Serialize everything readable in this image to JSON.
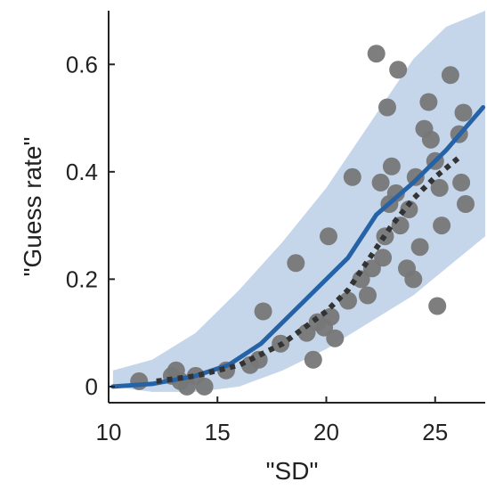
{
  "chart_data": {
    "type": "scatter",
    "xlabel": "\"SD\"",
    "ylabel": "\"Guess rate\"",
    "xlim": [
      10,
      27.3
    ],
    "ylim": [
      -0.03,
      0.7
    ],
    "xticks": [
      10,
      15,
      20,
      25
    ],
    "xtick_labels": [
      "10",
      "15",
      "20",
      "25"
    ],
    "yticks": [
      0,
      0.2,
      0.4,
      0.6
    ],
    "ytick_labels": [
      "0",
      "0.2",
      "0.4",
      "0.6"
    ],
    "grid": false,
    "band": {
      "x": [
        10.2,
        12,
        14,
        16,
        18,
        20,
        22,
        24,
        25.5,
        27.3
      ],
      "lower": [
        0.0,
        -0.01,
        -0.01,
        0.0,
        0.03,
        0.07,
        0.12,
        0.17,
        0.22,
        0.28
      ],
      "upper": [
        0.03,
        0.05,
        0.1,
        0.18,
        0.27,
        0.37,
        0.49,
        0.61,
        0.67,
        0.7
      ]
    },
    "points": [
      [
        11.4,
        0.01
      ],
      [
        12.9,
        0.02
      ],
      [
        13.1,
        0.03
      ],
      [
        13.3,
        0.01
      ],
      [
        13.6,
        0.0
      ],
      [
        14.0,
        0.02
      ],
      [
        14.4,
        0.0
      ],
      [
        15.4,
        0.03
      ],
      [
        16.5,
        0.04
      ],
      [
        16.9,
        0.05
      ],
      [
        17.1,
        0.14
      ],
      [
        17.9,
        0.08
      ],
      [
        18.6,
        0.23
      ],
      [
        19.1,
        0.1
      ],
      [
        19.4,
        0.05
      ],
      [
        19.6,
        0.12
      ],
      [
        19.9,
        0.11
      ],
      [
        20.1,
        0.28
      ],
      [
        20.2,
        0.13
      ],
      [
        20.4,
        0.09
      ],
      [
        21.0,
        0.16
      ],
      [
        21.2,
        0.39
      ],
      [
        21.6,
        0.2
      ],
      [
        21.9,
        0.17
      ],
      [
        22.1,
        0.22
      ],
      [
        22.3,
        0.62
      ],
      [
        22.5,
        0.38
      ],
      [
        22.6,
        0.24
      ],
      [
        22.7,
        0.28
      ],
      [
        22.8,
        0.52
      ],
      [
        22.9,
        0.34
      ],
      [
        23.0,
        0.41
      ],
      [
        23.2,
        0.36
      ],
      [
        23.3,
        0.59
      ],
      [
        23.4,
        0.3
      ],
      [
        23.7,
        0.22
      ],
      [
        23.8,
        0.33
      ],
      [
        24.0,
        0.2
      ],
      [
        24.1,
        0.39
      ],
      [
        24.3,
        0.26
      ],
      [
        24.5,
        0.48
      ],
      [
        24.7,
        0.53
      ],
      [
        24.8,
        0.46
      ],
      [
        25.0,
        0.42
      ],
      [
        25.1,
        0.15
      ],
      [
        25.2,
        0.37
      ],
      [
        25.3,
        0.3
      ],
      [
        25.7,
        0.58
      ],
      [
        26.1,
        0.47
      ],
      [
        26.2,
        0.38
      ],
      [
        26.3,
        0.51
      ],
      [
        26.4,
        0.34
      ]
    ],
    "series": [
      {
        "style": "solid",
        "color": "#2563a6",
        "x": [
          10.2,
          12,
          14,
          15.5,
          17,
          19,
          21,
          22.3,
          24,
          25.5,
          27.2
        ],
        "y": [
          0.0,
          0.005,
          0.02,
          0.04,
          0.08,
          0.16,
          0.24,
          0.32,
          0.38,
          0.44,
          0.52
        ]
      },
      {
        "style": "dotted",
        "color": "#333333",
        "x": [
          12.2,
          14,
          16,
          18,
          20,
          21,
          22,
          23,
          24,
          25,
          26.2
        ],
        "y": [
          0.01,
          0.02,
          0.04,
          0.08,
          0.14,
          0.18,
          0.24,
          0.3,
          0.35,
          0.39,
          0.43
        ]
      }
    ],
    "colors": {
      "band": "#c5d6ea",
      "points": "#777777",
      "axis": "#222222"
    }
  }
}
